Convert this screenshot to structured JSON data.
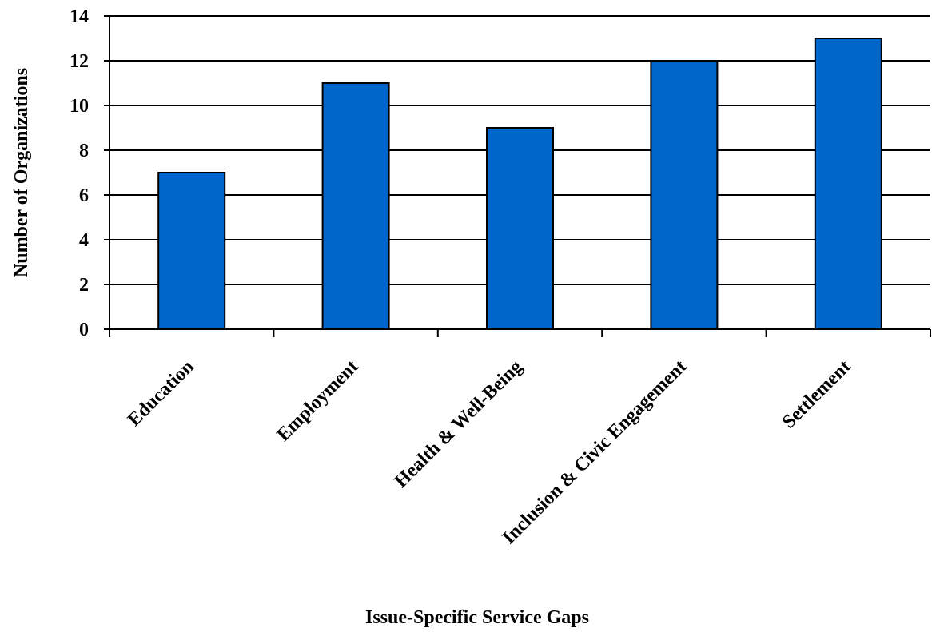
{
  "chart_data": {
    "type": "bar",
    "title": "",
    "xlabel": "Issue-Specific Service Gaps",
    "ylabel": "Number of Organizations",
    "categories": [
      "Education",
      "Employment",
      "Health & Well-Being",
      "Inclusion & Civic Engagement",
      "Settlement"
    ],
    "values": [
      7,
      11,
      9,
      12,
      13
    ],
    "ylim": [
      0,
      14
    ],
    "yticks": [
      0,
      2,
      4,
      6,
      8,
      10,
      12,
      14
    ],
    "grid": true,
    "legend": "none",
    "colors": {
      "bar": "#0066cc",
      "bar_edge": "#000000",
      "grid": "#000000"
    }
  }
}
